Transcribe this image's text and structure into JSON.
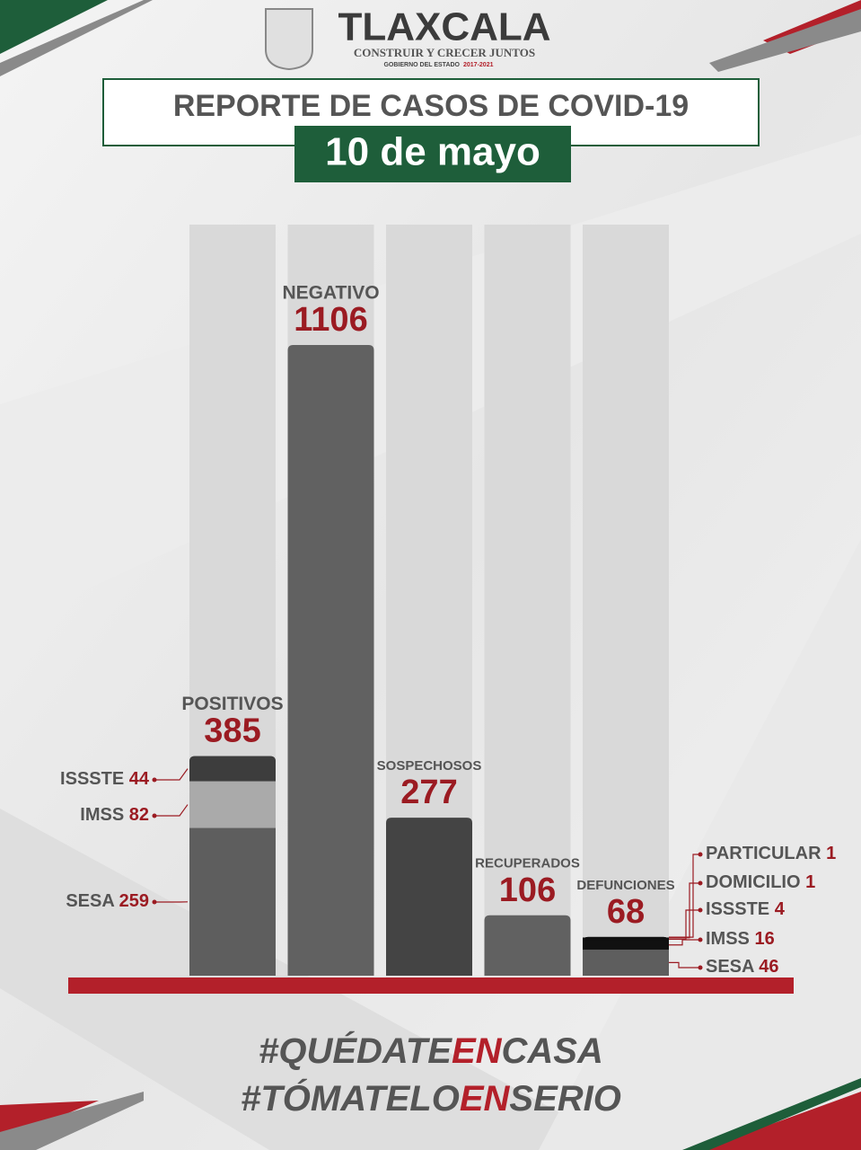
{
  "header": {
    "brand": "TLAXCALA",
    "motto": "CONSTRUIR Y CRECER JUNTOS",
    "government": "GOBIERNO DEL ESTADO",
    "term": "2017-2021"
  },
  "chart_data": {
    "type": "bar",
    "title": "REPORTE DE CASOS DE COVID-19",
    "subtitle": "10 de mayo",
    "categories": [
      "POSITIVOS",
      "NEGATIVO",
      "SOSPECHOSOS",
      "RECUPERADOS",
      "DEFUNCIONES"
    ],
    "values": [
      385,
      1106,
      277,
      106,
      68
    ],
    "colors": [
      "#3d3d3d",
      "#616161",
      "#444444",
      "#616161",
      "#111111"
    ],
    "positivos_segments": {
      "names": [
        "SESA",
        "IMSS",
        "ISSSTE"
      ],
      "values": [
        259,
        82,
        44
      ],
      "colors": [
        "#5e5e5e",
        "#aaaaaa",
        "#3d3d3d"
      ]
    },
    "defunciones_segments": {
      "names": [
        "SESA",
        "IMSS",
        "ISSSTE",
        "DOMICILIO",
        "PARTICULAR"
      ],
      "values": [
        46,
        16,
        4,
        1,
        1
      ],
      "colors": [
        "#5e5e5e",
        "#111111",
        "#111111",
        "#111111",
        "#111111"
      ]
    }
  },
  "footer": {
    "line1": [
      "#QUÉDATE",
      "EN",
      "CASA"
    ],
    "line2": [
      "#TÓMATELO",
      "EN",
      "SERIO"
    ]
  }
}
